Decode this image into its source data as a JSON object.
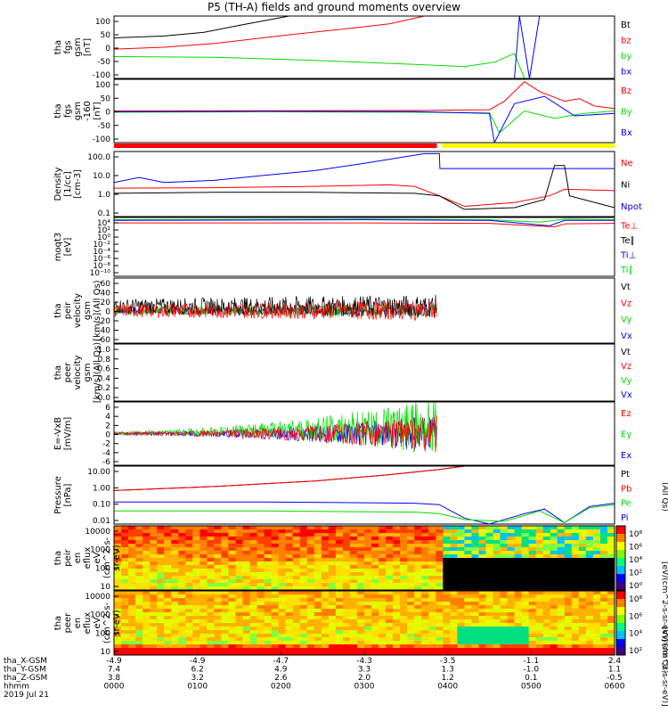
{
  "title": "P5 (TH-A) fields and ground moments overview",
  "colors": {
    "black": "#000000",
    "red": "#ff0000",
    "green": "#00dd00",
    "blue": "#0000ff",
    "yellow": "#ffff00"
  },
  "chart_data": [
    {
      "id": "fgs",
      "type": "line",
      "ylabel": [
        "tha",
        "fgs",
        "gsm",
        "[nT]"
      ],
      "yticks": [
        "100",
        "50",
        "0",
        "-50",
        "-100"
      ],
      "ylim": [
        -100,
        100
      ],
      "legend": [
        "Bt",
        "bz",
        "by",
        "bx"
      ],
      "legend_colors": [
        "black",
        "red",
        "green",
        "blue"
      ],
      "series": [
        {
          "color": "black",
          "points": [
            [
              0,
              30
            ],
            [
              0.1,
              36
            ],
            [
              0.18,
              48
            ],
            [
              0.25,
              70
            ],
            [
              0.3,
              85
            ],
            [
              0.35,
              100
            ]
          ]
        },
        {
          "color": "red",
          "points": [
            [
              0,
              -6
            ],
            [
              0.1,
              0
            ],
            [
              0.2,
              12
            ],
            [
              0.35,
              40
            ],
            [
              0.48,
              62
            ],
            [
              0.55,
              75
            ],
            [
              0.62,
              100
            ]
          ]
        },
        {
          "color": "green",
          "points": [
            [
              0,
              -30
            ],
            [
              0.2,
              -32
            ],
            [
              0.4,
              -42
            ],
            [
              0.6,
              -55
            ],
            [
              0.7,
              -62
            ],
            [
              0.76,
              -48
            ],
            [
              0.8,
              -20
            ],
            [
              0.82,
              -100
            ]
          ]
        },
        {
          "color": "blue",
          "points": [
            [
              0.8,
              -100
            ],
            [
              0.81,
              100
            ],
            [
              0.83,
              -100
            ],
            [
              0.85,
              100
            ]
          ]
        }
      ]
    },
    {
      "id": "fgs_despun",
      "type": "line",
      "ylabel": [
        "tha",
        "fgs",
        "gsm",
        "-160",
        "[nT]"
      ],
      "yticks": [
        "100",
        "50",
        "0",
        "-50",
        "-100"
      ],
      "ylim": [
        -130,
        130
      ],
      "legend": [
        "Bz",
        "By",
        "Bx"
      ],
      "legend_colors": [
        "red",
        "green",
        "blue"
      ],
      "series": [
        {
          "color": "red",
          "points": [
            [
              0,
              0
            ],
            [
              0.3,
              1
            ],
            [
              0.6,
              2
            ],
            [
              0.75,
              5
            ],
            [
              0.78,
              40
            ],
            [
              0.82,
              120
            ],
            [
              0.85,
              80
            ],
            [
              0.9,
              40
            ],
            [
              0.93,
              50
            ],
            [
              0.96,
              20
            ],
            [
              1,
              10
            ]
          ]
        },
        {
          "color": "green",
          "points": [
            [
              0,
              -5
            ],
            [
              0.3,
              -3
            ],
            [
              0.6,
              -5
            ],
            [
              0.75,
              -8
            ],
            [
              0.77,
              -90
            ],
            [
              0.82,
              0
            ],
            [
              0.88,
              -30
            ],
            [
              0.94,
              -10
            ],
            [
              1,
              0
            ]
          ]
        },
        {
          "color": "blue",
          "points": [
            [
              0,
              -3
            ],
            [
              0.3,
              -2
            ],
            [
              0.6,
              -3
            ],
            [
              0.75,
              -10
            ],
            [
              0.76,
              -130
            ],
            [
              0.8,
              30
            ],
            [
              0.86,
              60
            ],
            [
              0.92,
              -20
            ],
            [
              1,
              -10
            ]
          ]
        }
      ]
    },
    {
      "id": "density",
      "type": "line",
      "ylabel": [
        "Density",
        "[1/cc]",
        "[cm-3]"
      ],
      "yticks": [
        "100.0",
        "10.0",
        "1.0",
        "0.1"
      ],
      "ylim": [
        0.03,
        200
      ],
      "log": true,
      "legend": [
        "Ne",
        "Ni",
        "Npot"
      ],
      "legend_colors": [
        "red",
        "black",
        "blue"
      ],
      "series": [
        {
          "color": "blue",
          "points": [
            [
              0,
              3
            ],
            [
              0.05,
              6
            ],
            [
              0.1,
              3
            ],
            [
              0.2,
              4
            ],
            [
              0.3,
              8
            ],
            [
              0.4,
              15
            ],
            [
              0.5,
              40
            ],
            [
              0.62,
              150
            ],
            [
              0.65,
              150
            ],
            [
              0.651,
              20
            ],
            [
              0.8,
              20
            ],
            [
              1,
              20
            ]
          ]
        },
        {
          "color": "red",
          "points": [
            [
              0,
              1.4
            ],
            [
              0.2,
              1.5
            ],
            [
              0.4,
              1.8
            ],
            [
              0.55,
              2.2
            ],
            [
              0.6,
              1.8
            ],
            [
              0.65,
              0.5
            ],
            [
              0.7,
              0.12
            ],
            [
              0.8,
              0.2
            ],
            [
              0.87,
              0.5
            ],
            [
              0.9,
              1.2
            ],
            [
              1,
              1
            ]
          ]
        },
        {
          "color": "black",
          "points": [
            [
              0,
              0.7
            ],
            [
              0.2,
              0.8
            ],
            [
              0.4,
              0.8
            ],
            [
              0.6,
              0.7
            ],
            [
              0.65,
              0.5
            ],
            [
              0.7,
              0.08
            ],
            [
              0.8,
              0.1
            ],
            [
              0.86,
              0.3
            ],
            [
              0.88,
              30
            ],
            [
              0.9,
              30
            ],
            [
              0.91,
              0.5
            ],
            [
              1,
              0.1
            ]
          ]
        }
      ]
    },
    {
      "id": "moqt3",
      "type": "line",
      "ylabel": [
        "moqt3",
        "[eV]"
      ],
      "yticks": [
        "10⁴",
        "10²",
        "10⁰",
        "10⁻²",
        "10⁻⁴",
        "10⁻⁶",
        "10⁻⁸",
        "10⁻¹⁰"
      ],
      "ylim": [
        1e-10,
        10000.0
      ],
      "log": true,
      "legend": [
        "Te⊥",
        "Te∥",
        "Ti⊥",
        "Ti∥"
      ],
      "legend_colors": [
        "red",
        "black",
        "blue",
        "green"
      ],
      "series": [
        {
          "color": "green",
          "points": [
            [
              0,
              3000
            ],
            [
              0.5,
              4000
            ],
            [
              0.75,
              3000
            ],
            [
              0.85,
              800
            ],
            [
              0.9,
              4000
            ],
            [
              1,
              3000
            ]
          ]
        },
        {
          "color": "blue",
          "points": [
            [
              0,
              2000
            ],
            [
              0.5,
              3000
            ],
            [
              0.75,
              2000
            ],
            [
              0.87,
              100
            ],
            [
              0.9,
              2000
            ],
            [
              1,
              2000
            ]
          ]
        },
        {
          "color": "red",
          "points": [
            [
              0,
              500
            ],
            [
              0.5,
              500
            ],
            [
              0.75,
              400
            ],
            [
              0.88,
              60
            ],
            [
              0.9,
              300
            ],
            [
              1,
              400
            ]
          ]
        }
      ]
    },
    {
      "id": "peir_velocity",
      "type": "line",
      "ylabel": [
        "tha",
        "peir",
        "velocity",
        "gsm",
        "[km/s](All Qs)"
      ],
      "yticks": [
        "60",
        "40",
        "20",
        "0",
        "-20",
        "-40",
        "-60"
      ],
      "ylim": [
        -60,
        60
      ],
      "legend": [
        "Vt",
        "Vz",
        "Vy",
        "Vx"
      ],
      "legend_colors": [
        "black",
        "red",
        "green",
        "blue"
      ],
      "series": []
    },
    {
      "id": "peer_velocity",
      "type": "line",
      "ylabel": [
        "tha",
        "peer",
        "velocity",
        "gsm",
        "[km/s](All Qs)"
      ],
      "yticks": [
        "1.0",
        "0.8",
        "0.6",
        "0.4",
        "0.2",
        "0.0"
      ],
      "ylim": [
        0,
        1
      ],
      "legend": [
        "Vt",
        "Vz",
        "Vy",
        "Vx"
      ],
      "legend_colors": [
        "black",
        "red",
        "green",
        "blue"
      ],
      "series": []
    },
    {
      "id": "efield",
      "type": "line",
      "ylabel": [
        "E=-VxB",
        "[mV/m]"
      ],
      "yticks": [
        "6",
        "4",
        "2",
        "0",
        "-2",
        "-4",
        "-6"
      ],
      "ylim": [
        -6,
        6
      ],
      "legend": [
        "Ez",
        "Ey",
        "Ex"
      ],
      "legend_colors": [
        "red",
        "green",
        "blue"
      ],
      "series": []
    },
    {
      "id": "pressure",
      "type": "line",
      "ylabel": [
        "Pressure",
        "[nPa]"
      ],
      "yticks": [
        "10.00",
        "1.00",
        "0.10",
        "0.01"
      ],
      "ylim": [
        0.004,
        30
      ],
      "log": true,
      "legend": [
        "Pt",
        "Pb",
        "Pe",
        "Pi"
      ],
      "legend_colors": [
        "black",
        "red",
        "green",
        "blue"
      ],
      "y2label": "(All Qs)",
      "series": [
        {
          "color": "black",
          "points": [
            [
              0,
              0.7
            ],
            [
              0.2,
              1.3
            ],
            [
              0.4,
              3
            ],
            [
              0.55,
              8
            ],
            [
              0.65,
              18
            ],
            [
              0.7,
              30
            ]
          ]
        },
        {
          "color": "red",
          "points": [
            [
              0,
              0.7
            ],
            [
              0.2,
              1.3
            ],
            [
              0.4,
              3
            ],
            [
              0.55,
              8
            ],
            [
              0.65,
              18
            ],
            [
              0.7,
              30
            ]
          ]
        },
        {
          "color": "blue",
          "points": [
            [
              0,
              0.12
            ],
            [
              0.3,
              0.12
            ],
            [
              0.6,
              0.1
            ],
            [
              0.65,
              0.08
            ],
            [
              0.7,
              0.01
            ],
            [
              0.75,
              0.004
            ],
            [
              0.82,
              0.02
            ],
            [
              0.86,
              0.04
            ],
            [
              0.9,
              0.005
            ],
            [
              0.95,
              0.06
            ],
            [
              1,
              0.1
            ]
          ]
        },
        {
          "color": "green",
          "points": [
            [
              0,
              0.03
            ],
            [
              0.3,
              0.03
            ],
            [
              0.6,
              0.025
            ],
            [
              0.65,
              0.02
            ],
            [
              0.7,
              0.008
            ],
            [
              0.78,
              0.006
            ],
            [
              0.85,
              0.03
            ],
            [
              0.9,
              0.005
            ],
            [
              0.95,
              0.05
            ],
            [
              1,
              0.08
            ]
          ]
        }
      ]
    },
    {
      "id": "peir_en_eflux",
      "type": "heatmap",
      "ylabel": [
        "tha",
        "peir",
        "en",
        "eflux",
        "eV",
        "(cm^2-s-",
        "sr-eV)"
      ],
      "yticks": [
        "10000",
        "1000",
        "100",
        "10"
      ],
      "cbar_ticks": [
        "10⁸",
        "10⁶",
        "10⁴",
        "10²",
        "10⁰"
      ],
      "cbar_label": "[eV/(cm^2-s-sr-eV)] (All Qs)"
    },
    {
      "id": "peer_en_eflux",
      "type": "heatmap",
      "ylabel": [
        "tha",
        "peer",
        "en",
        "eflux",
        "eV",
        "(cm^2-s-",
        "sr-eV)"
      ],
      "yticks": [
        "10000",
        "1000",
        "100",
        "10"
      ],
      "cbar_ticks": [
        "10⁸",
        "10⁶",
        "10⁴",
        "10²"
      ],
      "cbar_label": "[eV/(cm^2-s-sr-eV)]"
    }
  ],
  "xaxis": {
    "row_labels": [
      "tha_X-GSM",
      "tha_Y-GSM",
      "tha_Z-GSM",
      "hhmm",
      "2019 Jul 21"
    ],
    "columns": [
      {
        "vals": [
          "-4.9",
          "7.4",
          "3.8",
          "0000"
        ]
      },
      {
        "vals": [
          "-4.9",
          "6.2",
          "3.2",
          "0100"
        ]
      },
      {
        "vals": [
          "-4.7",
          "4.9",
          "2.6",
          "0200"
        ]
      },
      {
        "vals": [
          "-4.3",
          "3.3",
          "2.0",
          "0300"
        ]
      },
      {
        "vals": [
          "-3.5",
          "1.3",
          "1.2",
          "0400"
        ]
      },
      {
        "vals": [
          "-1.1",
          "-1.0",
          "0.1",
          "0500"
        ]
      },
      {
        "vals": [
          "2.4",
          "1.1",
          "-0.5",
          "0600"
        ]
      }
    ]
  }
}
